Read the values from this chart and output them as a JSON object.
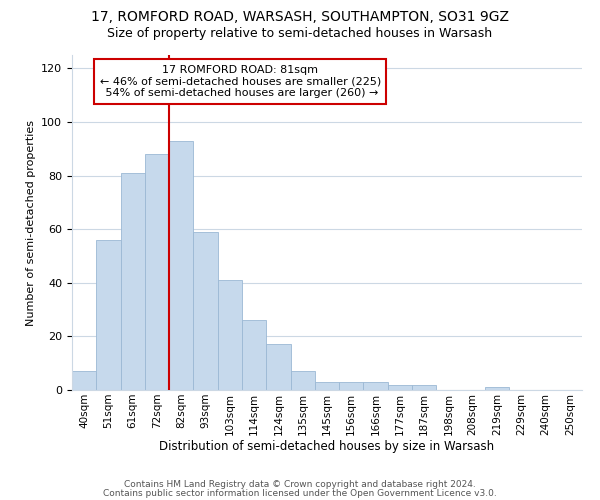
{
  "title": "17, ROMFORD ROAD, WARSASH, SOUTHAMPTON, SO31 9GZ",
  "subtitle": "Size of property relative to semi-detached houses in Warsash",
  "xlabel": "Distribution of semi-detached houses by size in Warsash",
  "ylabel": "Number of semi-detached properties",
  "bar_labels": [
    "40sqm",
    "51sqm",
    "61sqm",
    "72sqm",
    "82sqm",
    "93sqm",
    "103sqm",
    "114sqm",
    "124sqm",
    "135sqm",
    "145sqm",
    "156sqm",
    "166sqm",
    "177sqm",
    "187sqm",
    "198sqm",
    "208sqm",
    "219sqm",
    "229sqm",
    "240sqm",
    "250sqm"
  ],
  "bar_values": [
    7,
    56,
    81,
    88,
    93,
    59,
    41,
    26,
    17,
    7,
    3,
    3,
    3,
    2,
    2,
    0,
    0,
    1,
    0,
    0,
    0
  ],
  "bar_color": "#c6d9ec",
  "bar_edge_color": "#9bb8d4",
  "property_label": "17 ROMFORD ROAD: 81sqm",
  "pct_smaller": 46,
  "count_smaller": 225,
  "pct_larger": 54,
  "count_larger": 260,
  "vline_index": 4,
  "vline_color": "#cc0000",
  "annotation_box_color": "#cc0000",
  "ylim": [
    0,
    125
  ],
  "yticks": [
    0,
    20,
    40,
    60,
    80,
    100,
    120
  ],
  "footer1": "Contains HM Land Registry data © Crown copyright and database right 2024.",
  "footer2": "Contains public sector information licensed under the Open Government Licence v3.0.",
  "background_color": "#ffffff",
  "grid_color": "#ccd8e4"
}
